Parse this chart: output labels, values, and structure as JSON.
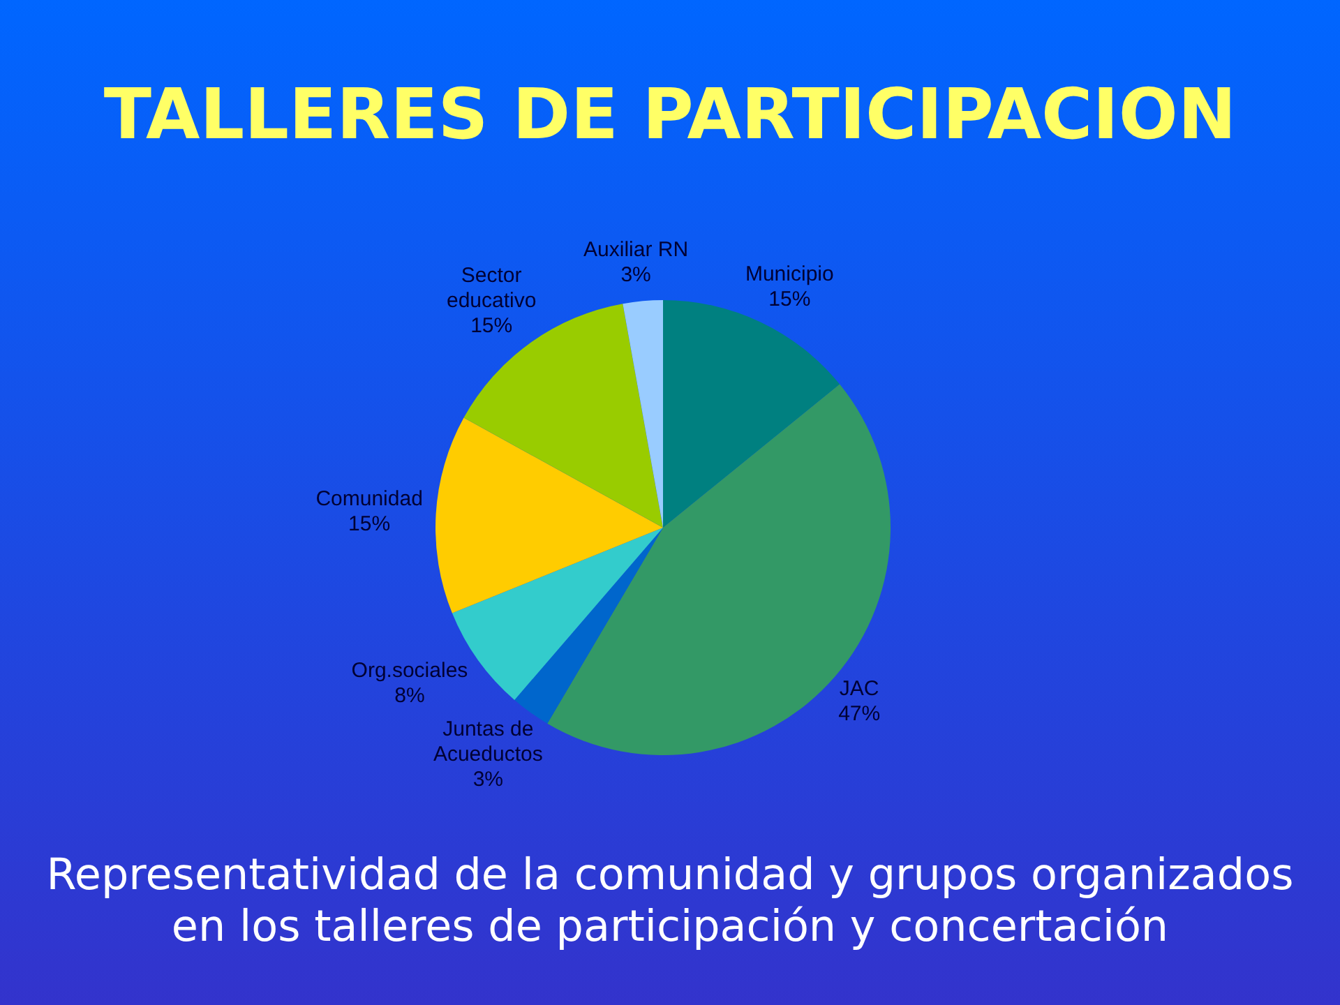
{
  "chart_data": {
    "type": "pie",
    "title": "TALLERES DE PARTICIPACION",
    "categories": [
      "Municipio",
      "JAC",
      "Juntas de Acueductos",
      "Org.sociales",
      "Comunidad",
      "Sector educativo",
      "Auxiliar RN"
    ],
    "values": [
      15,
      47,
      3,
      8,
      15,
      15,
      3
    ],
    "colors": [
      "#008080",
      "#339966",
      "#0066cc",
      "#33cccc",
      "#ffcc00",
      "#99cc00",
      "#99ccff"
    ],
    "value_labels": [
      "15%",
      "47%",
      "3%",
      "8%",
      "15%",
      "15%",
      "3%"
    ],
    "annotations": [
      "Representatividad de la comunidad y grupos organizados en los talleres de participación y concertación"
    ]
  }
}
